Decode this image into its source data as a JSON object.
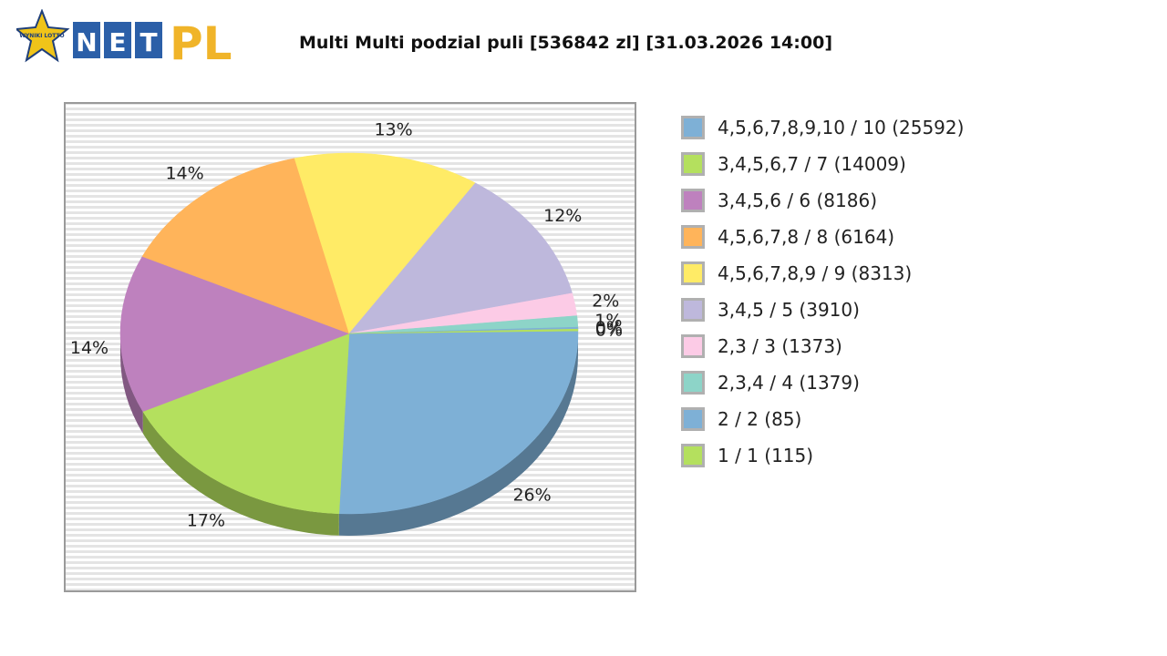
{
  "header": {
    "title": "Multi Multi podzial puli [536842 zl] [31.03.2026 14:00]",
    "logo": {
      "badge_text": "WYNIKI LOTTO",
      "letters": [
        "N",
        "E",
        "T"
      ],
      "suffix": "PL"
    }
  },
  "colors": {
    "blue": "#7eb0d6",
    "green": "#b4e05e",
    "purple": "#be81be",
    "orange": "#ffb45a",
    "yellow": "#ffeb66",
    "lavender": "#beb8dc",
    "pink": "#fccbe6",
    "teal": "#8dd4c8",
    "logo_blue": "#2b5fa8",
    "logo_gold": "#f0b429"
  },
  "chart_data": {
    "type": "pie",
    "title": "Multi Multi podzial puli [536842 zl] [31.03.2026 14:00]",
    "slices": [
      {
        "label": "4,5,6,7,8,9,10 / 10 (25592)",
        "value": 25592,
        "percent_label": "26%",
        "color": "#7eb0d6"
      },
      {
        "label": "3,4,5,6,7 / 7 (14009)",
        "value": 14009,
        "percent_label": "17%",
        "color": "#b4e05e"
      },
      {
        "label": "3,4,5,6 / 6 (8186)",
        "value": 8186,
        "percent_label": "14%",
        "color": "#be81be"
      },
      {
        "label": "4,5,6,7,8 / 8 (6164)",
        "value": 6164,
        "percent_label": "14%",
        "color": "#ffb45a"
      },
      {
        "label": "4,5,6,7,8,9 / 9 (8313)",
        "value": 8313,
        "percent_label": "13%",
        "color": "#ffeb66"
      },
      {
        "label": "3,4,5 / 5 (3910)",
        "value": 3910,
        "percent_label": "12%",
        "color": "#beb8dc"
      },
      {
        "label": "2,3 / 3 (1373)",
        "value": 1373,
        "percent_label": "2%",
        "color": "#fccbe6"
      },
      {
        "label": "2,3,4 / 4 (1379)",
        "value": 1379,
        "percent_label": "1%",
        "color": "#8dd4c8"
      },
      {
        "label": "2 / 2 (85)",
        "value": 85,
        "percent_label": "0%",
        "color": "#7eb0d6"
      },
      {
        "label": "1 / 1 (115)",
        "value": 115,
        "percent_label": "0%",
        "color": "#b4e05e"
      }
    ],
    "displayed_shares": [
      26,
      17,
      14,
      14,
      13,
      12,
      2,
      1,
      0,
      0
    ],
    "legend_position": "right",
    "three_d": true
  }
}
